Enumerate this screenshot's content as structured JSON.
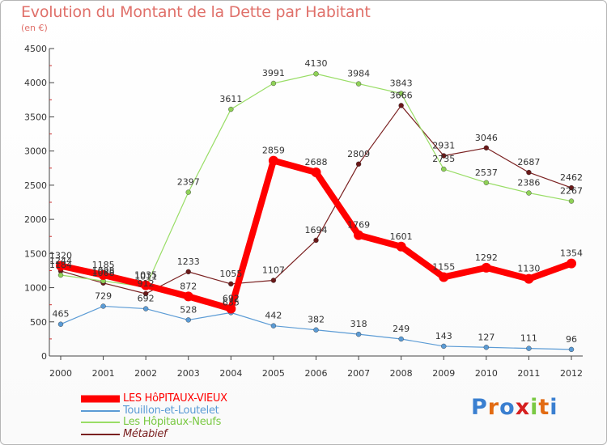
{
  "title": "Evolution du Montant de la Dette par Habitant",
  "subtitle": "(en €)",
  "logo": {
    "text": "Proxiti"
  },
  "chart_data": {
    "type": "line",
    "title": "Evolution du Montant de la Dette par Habitant",
    "subtitle": "(en €)",
    "xlabel": "",
    "ylabel": "",
    "ylim": [
      0,
      4500
    ],
    "yticks": [
      "0",
      "500",
      "1000",
      "1500",
      "2000",
      "2500",
      "3000",
      "3500",
      "4000",
      "4500"
    ],
    "categories": [
      "2000",
      "2001",
      "2002",
      "2003",
      "2004",
      "2005",
      "2006",
      "2007",
      "2008",
      "2009",
      "2010",
      "2011",
      "2012"
    ],
    "grid": false,
    "legend": "bottom-left",
    "series": [
      {
        "name": "LES HôPITAUX-VIEUX",
        "color": "#ff0000",
        "values": [
          1320,
          1185,
          1035,
          872,
          692,
          2859,
          2688,
          1769,
          1601,
          1155,
          1292,
          1130,
          1354
        ]
      },
      {
        "name": "Touillon-et-Loutelet",
        "color": "#5b9bd5",
        "values": [
          465,
          729,
          692,
          528,
          635,
          442,
          382,
          318,
          249,
          143,
          127,
          111,
          96
        ]
      },
      {
        "name": "Les Hôpitaux-Neufs",
        "color": "#99dd66",
        "values": [
          1184,
          1098,
          1011,
          2397,
          3611,
          3991,
          4130,
          3984,
          3843,
          2735,
          2537,
          2386,
          2267
        ]
      },
      {
        "name": "Métabief",
        "color": "#7a2020",
        "values": [
          1244,
          1068,
          912,
          1233,
          1055,
          1107,
          1694,
          2809,
          3666,
          2931,
          3046,
          2687,
          2462
        ]
      }
    ],
    "data_labels": [
      [
        "1320",
        "1185",
        "1035",
        "872",
        "692",
        "2859",
        "2688",
        "1769",
        "1601",
        "1155",
        "1292",
        "1130",
        "1354"
      ],
      [
        "465",
        "729",
        "692",
        "528",
        "635",
        "442",
        "382",
        "318",
        "249",
        "143",
        "127",
        "111",
        "96"
      ],
      [
        "1184",
        "1098",
        "1011",
        "2397",
        "3611",
        "3991",
        "4130",
        "3984",
        "3843",
        "2735",
        "2537",
        "2386",
        "2267"
      ],
      [
        "1244",
        "1068",
        "912",
        "1233",
        "1055",
        "1107",
        "1694",
        "2809",
        "3666",
        "2931",
        "3046",
        "2687",
        "2462"
      ]
    ]
  }
}
